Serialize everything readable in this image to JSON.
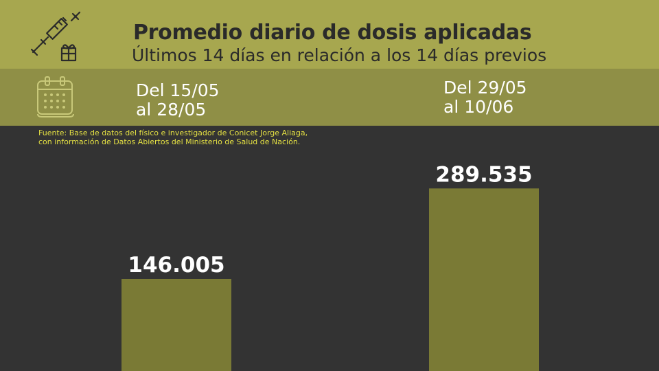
{
  "header": {
    "title": "Promedio diario de dosis aplicadas",
    "subtitle": "Últimos 14 días en relación a los 14 días previos",
    "icons": [
      "syringe-icon",
      "calendar-icon"
    ]
  },
  "periods": [
    {
      "line1": "Del 15/05",
      "line2": "al 28/05"
    },
    {
      "line1": "Del 29/05",
      "line2": "al 10/06"
    }
  ],
  "source": {
    "line1": "Fuente: Base de datos del físico e investigador de Conicet Jorge Aliaga,",
    "line2": "con información de Datos Abiertos del Ministerio de Salud de Nación."
  },
  "colors": {
    "band_top": "#a7a74f",
    "band_mid": "#8f8f46",
    "background": "#333333",
    "bar": "#7a7a35",
    "source_text": "#e4e043"
  },
  "chart_data": {
    "type": "bar",
    "categories": [
      "Del 15/05 al 28/05",
      "Del 29/05 al 10/06"
    ],
    "values": [
      146005,
      289535
    ],
    "value_labels": [
      "146.005",
      "289.535"
    ],
    "title": "Promedio diario de dosis aplicadas",
    "xlabel": "",
    "ylabel": "",
    "ylim": [
      0,
      400000
    ],
    "grid": false
  }
}
